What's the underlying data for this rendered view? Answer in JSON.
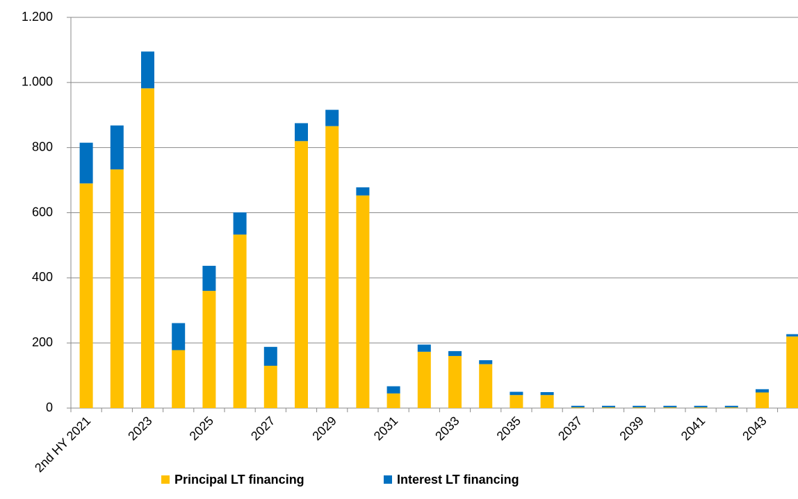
{
  "chart_data": {
    "type": "stacked_bar",
    "categories": [
      "2nd HY 2021",
      null,
      "2023",
      null,
      "2025",
      null,
      "2027",
      null,
      "2029",
      null,
      "2031",
      null,
      "2033",
      null,
      "2035",
      null,
      "2037",
      null,
      "2039",
      null,
      "2041",
      null,
      "2043",
      null
    ],
    "series": [
      {
        "name": "Principal LT financing",
        "color": "#FFC000",
        "values": [
          690,
          733,
          982,
          178,
          360,
          533,
          130,
          820,
          866,
          653,
          45,
          173,
          160,
          135,
          40,
          40,
          2,
          2,
          2,
          2,
          2,
          2,
          48,
          220
        ]
      },
      {
        "name": "Interest LT financing",
        "color": "#0070C0",
        "values": [
          125,
          135,
          113,
          83,
          77,
          68,
          58,
          55,
          50,
          25,
          22,
          22,
          15,
          12,
          10,
          9,
          5,
          5,
          5,
          5,
          5,
          5,
          10,
          7
        ]
      }
    ],
    "ylim": [
      0,
      1200
    ],
    "yticks": [
      0,
      200,
      400,
      600,
      800,
      {
        "value": 1000,
        "label": "1.000"
      },
      {
        "value": 1200,
        "label": "1.200"
      }
    ],
    "grid": true,
    "legend": "bottom"
  }
}
